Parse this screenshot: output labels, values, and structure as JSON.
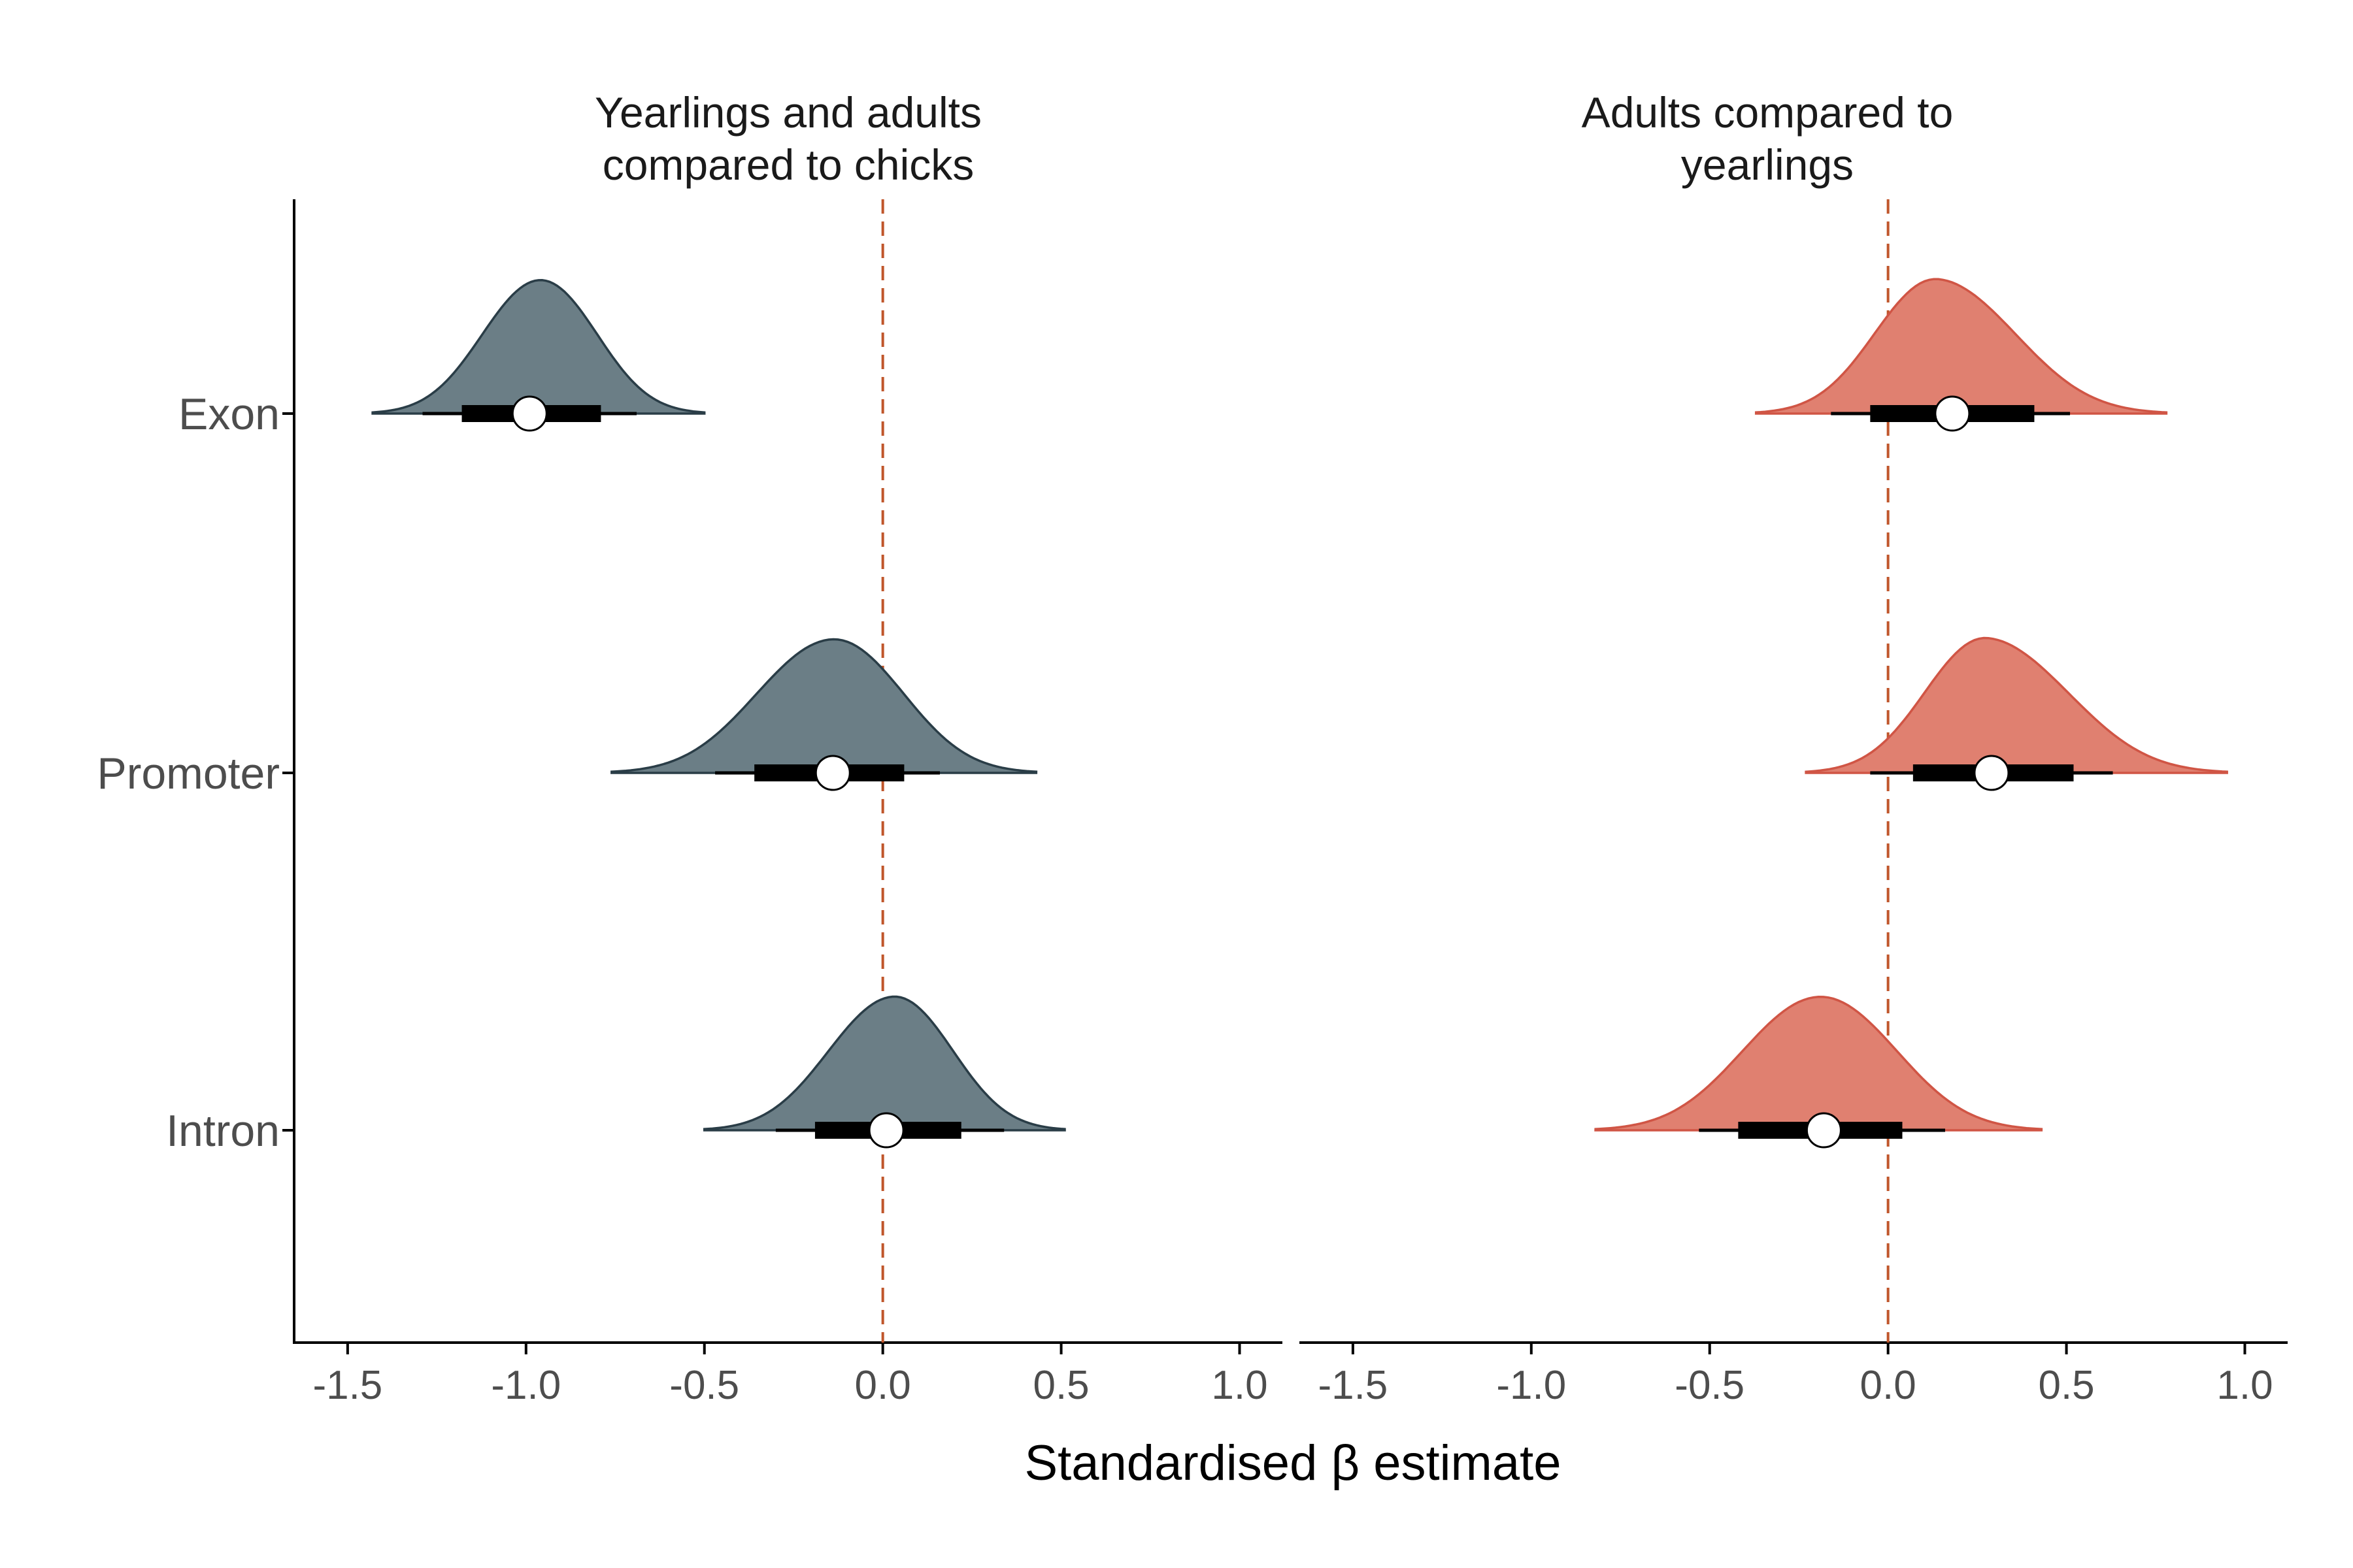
{
  "chart_data": {
    "type": "ridgeline",
    "xlabel": "Standardised β estimate",
    "ylabel": "",
    "categories": [
      "Exon",
      "Promoter",
      "Intron"
    ],
    "xlim": [
      -1.65,
      1.12
    ],
    "xticks": [
      -1.5,
      -1.0,
      -0.5,
      0.0,
      0.5,
      1.0
    ],
    "xtick_labels": [
      "-1.5",
      "-1.0",
      "-0.5",
      "0.0",
      "0.5",
      "1.0"
    ],
    "reference_line": 0.0,
    "grid": false,
    "colors": {
      "reference_line": "#c0562b",
      "axis": "#000000",
      "interval": "#000000",
      "point_fill": "#ffffff"
    },
    "panels": [
      {
        "title_lines": [
          "Yearlings and adults",
          "compared to chicks"
        ],
        "fill": "#6b7e86",
        "stroke": "#2a3d47",
        "series": [
          {
            "category": "Exon",
            "median": -0.99,
            "interval_66": [
              -1.18,
              -0.79
            ],
            "interval_95": [
              -1.29,
              -0.69
            ],
            "range": [
              -1.43,
              -0.5
            ],
            "peak": -0.96
          },
          {
            "category": "Promoter",
            "median": -0.14,
            "interval_66": [
              -0.36,
              0.06
            ],
            "interval_95": [
              -0.47,
              0.16
            ],
            "range": [
              -0.76,
              0.43
            ],
            "peak": -0.14
          },
          {
            "category": "Intron",
            "median": 0.01,
            "interval_66": [
              -0.19,
              0.22
            ],
            "interval_95": [
              -0.3,
              0.34
            ],
            "range": [
              -0.5,
              0.51
            ],
            "peak": 0.03
          }
        ]
      },
      {
        "title_lines": [
          "Adults compared to",
          "yearlings"
        ],
        "fill": "#e08070",
        "stroke": "#d05545",
        "series": [
          {
            "category": "Exon",
            "median": 0.18,
            "interval_66": [
              -0.05,
              0.41
            ],
            "interval_95": [
              -0.16,
              0.51
            ],
            "range": [
              -0.37,
              0.78
            ],
            "peak": 0.14
          },
          {
            "category": "Promoter",
            "median": 0.29,
            "interval_66": [
              0.07,
              0.52
            ],
            "interval_95": [
              -0.05,
              0.63
            ],
            "range": [
              -0.23,
              0.95
            ],
            "peak": 0.28
          },
          {
            "category": "Intron",
            "median": -0.18,
            "interval_66": [
              -0.42,
              0.04
            ],
            "interval_95": [
              -0.53,
              0.16
            ],
            "range": [
              -0.82,
              0.43
            ],
            "peak": -0.19
          }
        ]
      }
    ]
  }
}
